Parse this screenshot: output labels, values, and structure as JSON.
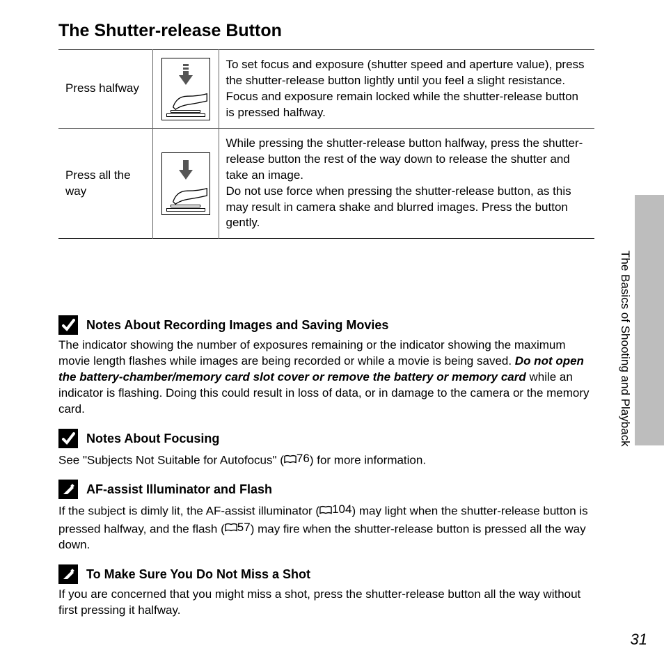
{
  "title": "The Shutter-release Button",
  "side_label": "The Basics of Shooting and Playback",
  "page_number": "31",
  "colors": {
    "text": "#000000",
    "background": "#ffffff",
    "side_tab": "#bdbdbd",
    "arrow_fill": "#555555",
    "rule": "#666666"
  },
  "table": {
    "rows": [
      {
        "label": "Press halfway",
        "icon_variant": "half",
        "desc": "To set focus and exposure (shutter speed and aperture value), press the shutter-release button lightly until you feel a slight resistance. Focus and exposure remain locked while the shutter-release button is pressed halfway."
      },
      {
        "label": "Press all the way",
        "icon_variant": "full",
        "desc": "While pressing the shutter-release button halfway, press the shutter-release button the rest of the way down to release the shutter and take an image.\nDo not use force when pressing the shutter-release button, as this may result in camera shake and blurred images. Press the button gently."
      }
    ]
  },
  "notes": [
    {
      "icon": "check",
      "title": "Notes About Recording Images and Saving Movies",
      "body_pre": "The indicator showing the number of exposures remaining or the indicator showing the maximum movie length flashes while images are being recorded or while a movie is being saved. ",
      "body_em": "Do not open the battery-chamber/memory card slot cover or remove the battery or memory card",
      "body_post": " while an indicator is flashing. Doing this could result in loss of data, or in damage to the camera or the memory card."
    },
    {
      "icon": "check",
      "title": "Notes About Focusing",
      "body_pre": "See \"Subjects Not Suitable for Autofocus\" (",
      "ref": "76",
      "body_post": ") for more information."
    },
    {
      "icon": "pencil",
      "title": "AF-assist Illuminator and Flash",
      "body_pre": "If the subject is dimly lit, the AF-assist illuminator (",
      "ref": "104",
      "body_mid": ") may light when the shutter-release button is pressed halfway, and the flash (",
      "ref2": "57",
      "body_post": ") may fire when the shutter-release button is pressed all the way down."
    },
    {
      "icon": "pencil",
      "title": "To Make Sure You Do Not Miss a Shot",
      "body_pre": "If you are concerned that you might miss a shot, press the shutter-release button all the way without first pressing it halfway."
    }
  ]
}
